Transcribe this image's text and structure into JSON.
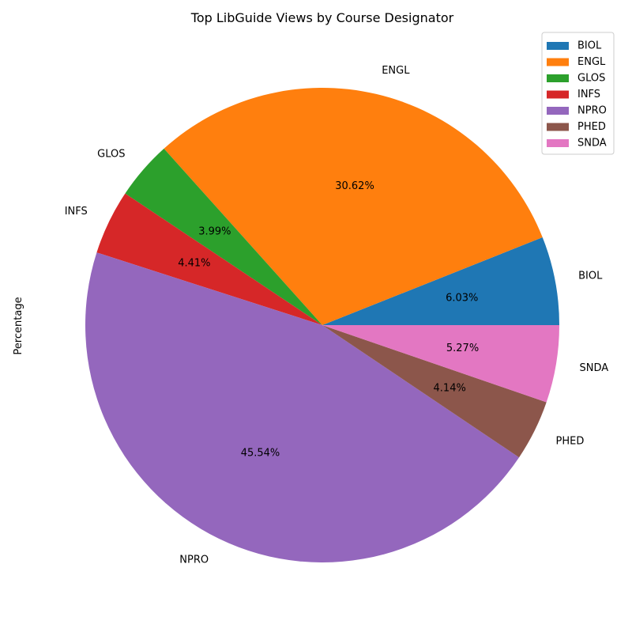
{
  "chart_data": {
    "type": "pie",
    "title": "Top LibGuide Views by Course Designator",
    "ylabel": "Percentage",
    "legend_position": "top-right",
    "categories": [
      "BIOL",
      "ENGL",
      "GLOS",
      "INFS",
      "NPRO",
      "PHED",
      "SNDA"
    ],
    "values": [
      6.03,
      30.62,
      3.99,
      4.41,
      45.54,
      4.14,
      5.27
    ],
    "value_labels": [
      "6.03%",
      "30.62%",
      "3.99%",
      "4.41%",
      "45.54%",
      "4.14%",
      "5.27%"
    ],
    "colors": [
      "#1f77b4",
      "#ff7f0e",
      "#2ca02c",
      "#d62728",
      "#9467bd",
      "#8c564b",
      "#e377c2"
    ]
  }
}
